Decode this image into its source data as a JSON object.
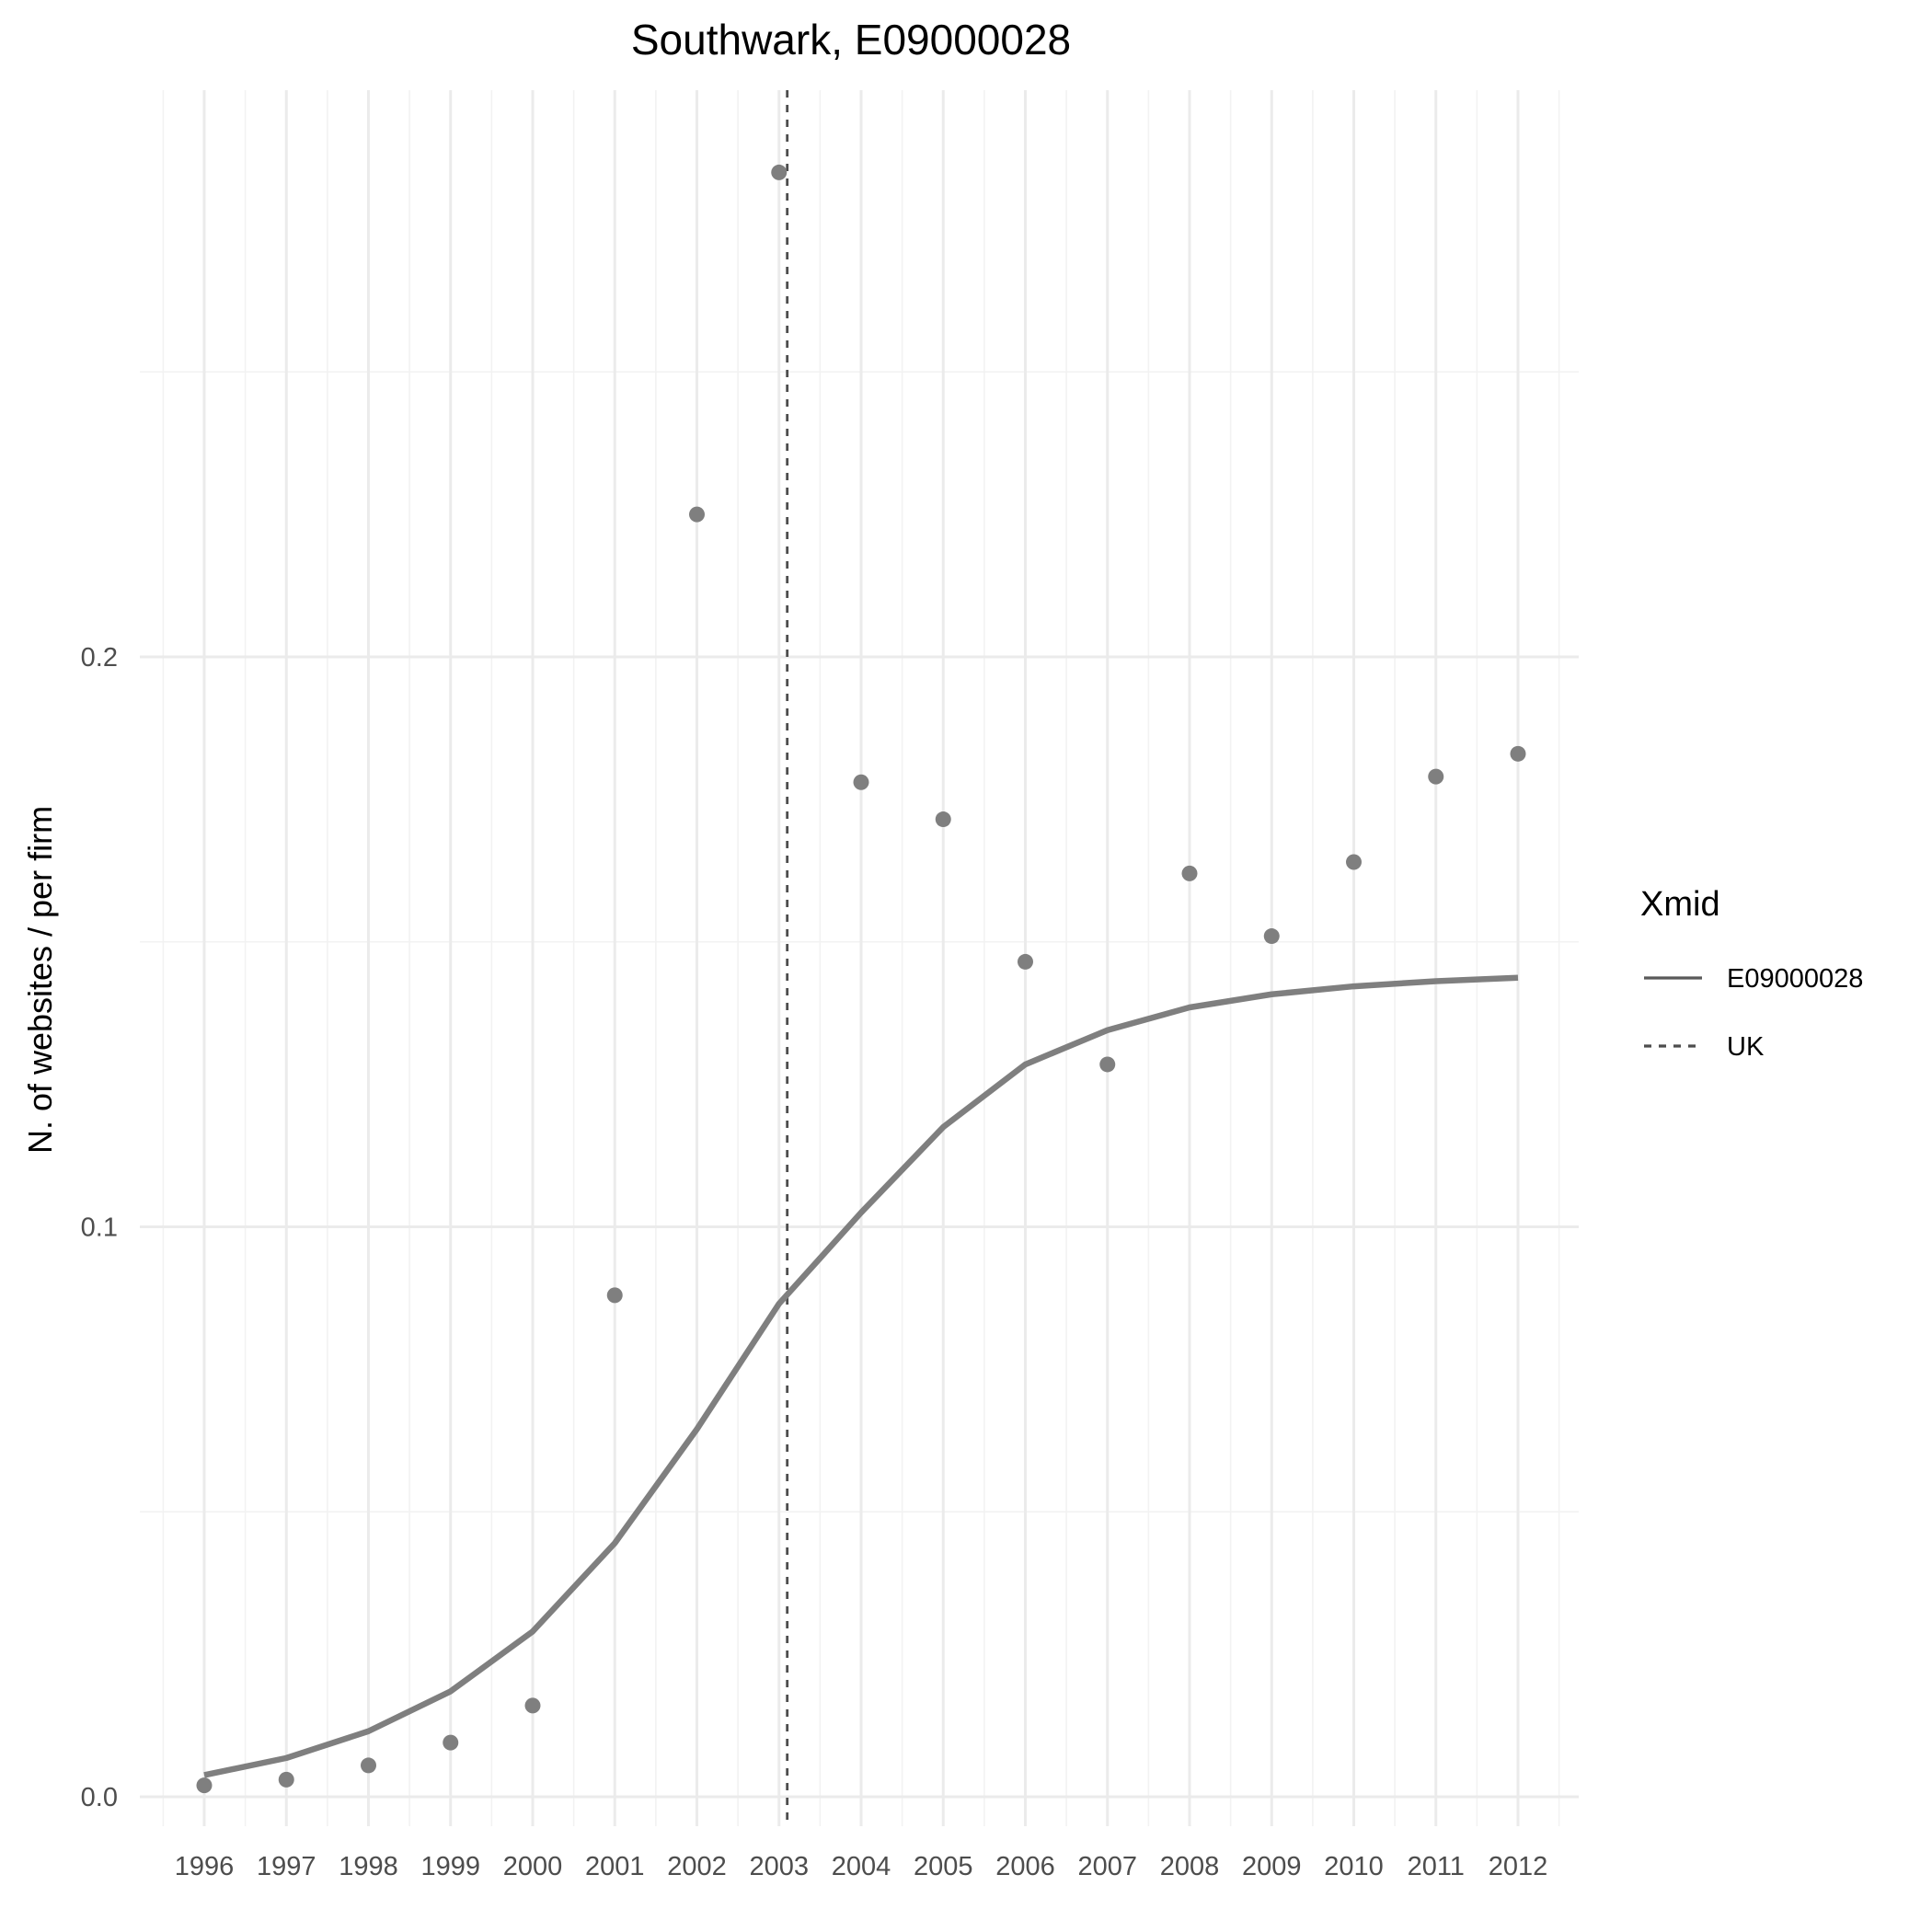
{
  "chart_data": {
    "type": "line",
    "title": "Southwark, E09000028",
    "xlabel": "",
    "ylabel": "N. of websites / per firm",
    "x": [
      1996,
      1997,
      1998,
      1999,
      2000,
      2001,
      2002,
      2003,
      2004,
      2005,
      2006,
      2007,
      2008,
      2009,
      2010,
      2011,
      2012
    ],
    "x_tick_labels": [
      "1996",
      "1997",
      "1998",
      "1999",
      "2000",
      "2001",
      "2002",
      "2003",
      "2004",
      "2005",
      "2006",
      "2007",
      "2008",
      "2009",
      "2010",
      "2011",
      "2012"
    ],
    "y_ticks": [
      0.0,
      0.1,
      0.2
    ],
    "y_tick_labels": [
      "0.0",
      "0.1",
      "0.2"
    ],
    "xlim": [
      1995.5,
      2012.5
    ],
    "ylim": [
      -0.0065,
      0.2985
    ],
    "grid": true,
    "points": {
      "values": [
        0.002,
        0.003,
        0.0055,
        0.0095,
        0.016,
        0.088,
        0.225,
        0.285,
        0.178,
        0.1715,
        0.1465,
        0.1285,
        0.162,
        0.151,
        0.164,
        0.179,
        0.183
      ],
      "color": "#7f7f7f"
    },
    "series": [
      {
        "name": "E09000028",
        "linetype": "solid",
        "color": "#7f7f7f",
        "values": [
          0.0038,
          0.0068,
          0.0115,
          0.0185,
          0.029,
          0.0445,
          0.0645,
          0.0865,
          0.1025,
          0.1175,
          0.1285,
          0.1345,
          0.1385,
          0.1408,
          0.1422,
          0.1431,
          0.1437
        ]
      }
    ],
    "reference_line": {
      "name": "UK",
      "orientation": "vertical",
      "linetype": "dashed",
      "x": 2003.1,
      "color": "#4d4d4d"
    },
    "legend": {
      "title": "Xmid",
      "position": "right",
      "entries": [
        {
          "label": "E09000028",
          "linetype": "solid",
          "color": "#595959"
        },
        {
          "label": "UK",
          "linetype": "dashed",
          "color": "#4d4d4d"
        }
      ]
    }
  }
}
